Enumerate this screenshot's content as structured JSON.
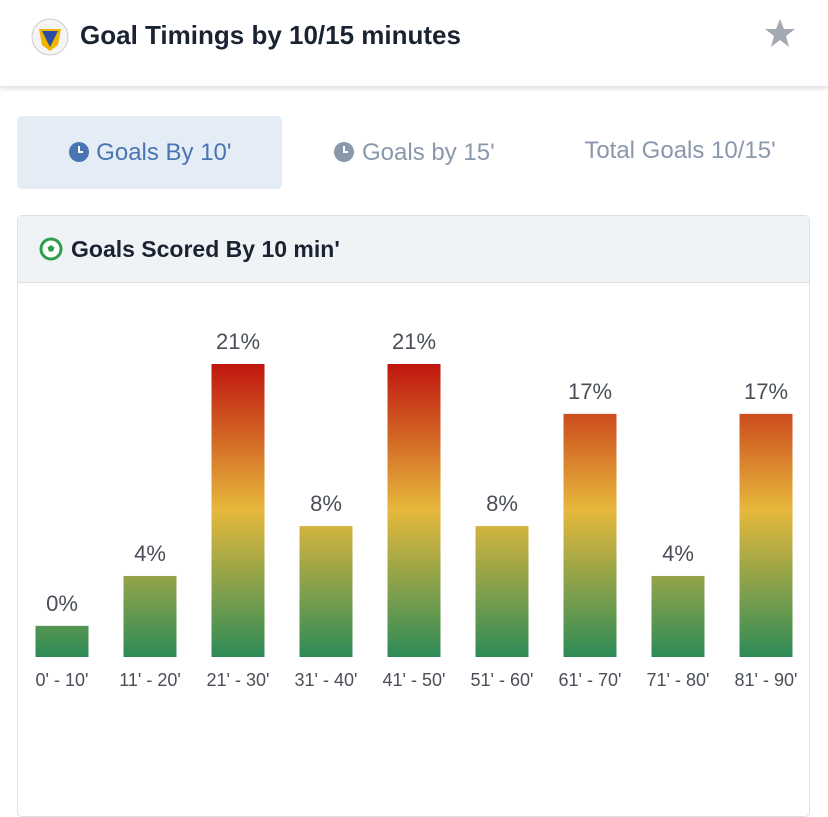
{
  "header": {
    "title": "Goal Timings by 10/15 minutes"
  },
  "tabs": [
    "Goals By 10'",
    "Goals by 15'",
    "Total Goals 10/15'"
  ],
  "panel": {
    "title": "Goals Scored By 10 min'"
  },
  "chart_data": {
    "type": "bar",
    "categories": [
      "0' - 10'",
      "11' - 20'",
      "21' - 30'",
      "31' - 40'",
      "41' - 50'",
      "51' - 60'",
      "61' - 70'",
      "71' - 80'",
      "81' - 90'"
    ],
    "values": [
      0,
      4,
      21,
      8,
      21,
      8,
      17,
      4,
      17
    ],
    "value_labels": [
      "0%",
      "4%",
      "21%",
      "8%",
      "21%",
      "8%",
      "17%",
      "4%",
      "17%"
    ],
    "ylim": [
      -2.5,
      21
    ],
    "colors": [
      "#2e8b57",
      "#e6b83c",
      "#c0150f"
    ]
  }
}
